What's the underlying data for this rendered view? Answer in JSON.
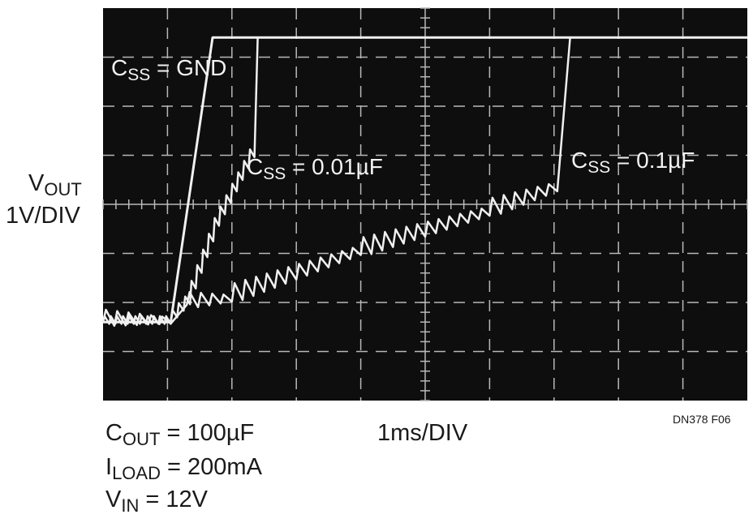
{
  "chart_data": {
    "type": "line",
    "title": "",
    "xlabel": "1ms/DIV",
    "ylabel": {
      "main": "V",
      "sub": "OUT",
      "scale": "1V/DIV"
    },
    "figure_id": "DN378 F06",
    "grid": {
      "divisions_x": 10,
      "divisions_y": 8,
      "visible": true
    },
    "xlim_div": [
      0,
      10
    ],
    "ylim_div": [
      0,
      8
    ],
    "conditions": [
      {
        "main": "C",
        "sub": "OUT",
        "rest": " = 100µF"
      },
      {
        "main": "I",
        "sub": "LOAD",
        "rest": " = 200mA"
      },
      {
        "main": "V",
        "sub": "IN",
        "rest": " = 12V"
      }
    ],
    "series": [
      {
        "name": "C_SS = GND",
        "label": {
          "main": "C",
          "sub": "SS",
          "rest": " = GND"
        },
        "points": [
          [
            0,
            1.6
          ],
          [
            1.05,
            1.6
          ],
          [
            1.7,
            7.4
          ],
          [
            10,
            7.4
          ]
        ]
      },
      {
        "name": "C_SS = 0.01µF",
        "label": {
          "main": "C",
          "sub": "SS",
          "rest": " = 0.01µF"
        },
        "points": [
          [
            0,
            1.6
          ],
          [
            1.05,
            1.6
          ],
          [
            1.35,
            2.0
          ],
          [
            1.8,
            3.6
          ],
          [
            2.35,
            5.0
          ],
          [
            2.4,
            7.4
          ],
          [
            10,
            7.4
          ]
        ]
      },
      {
        "name": "C_SS = 0.1µF",
        "label": {
          "main": "C",
          "sub": "SS",
          "rest": " = 0.1µF"
        },
        "points": [
          [
            0,
            1.6
          ],
          [
            1.05,
            1.6
          ],
          [
            1.3,
            1.95
          ],
          [
            2.0,
            2.05
          ],
          [
            4.0,
            3.0
          ],
          [
            6.0,
            3.8
          ],
          [
            7.05,
            4.3
          ],
          [
            7.25,
            7.4
          ],
          [
            10,
            7.4
          ]
        ]
      }
    ]
  }
}
